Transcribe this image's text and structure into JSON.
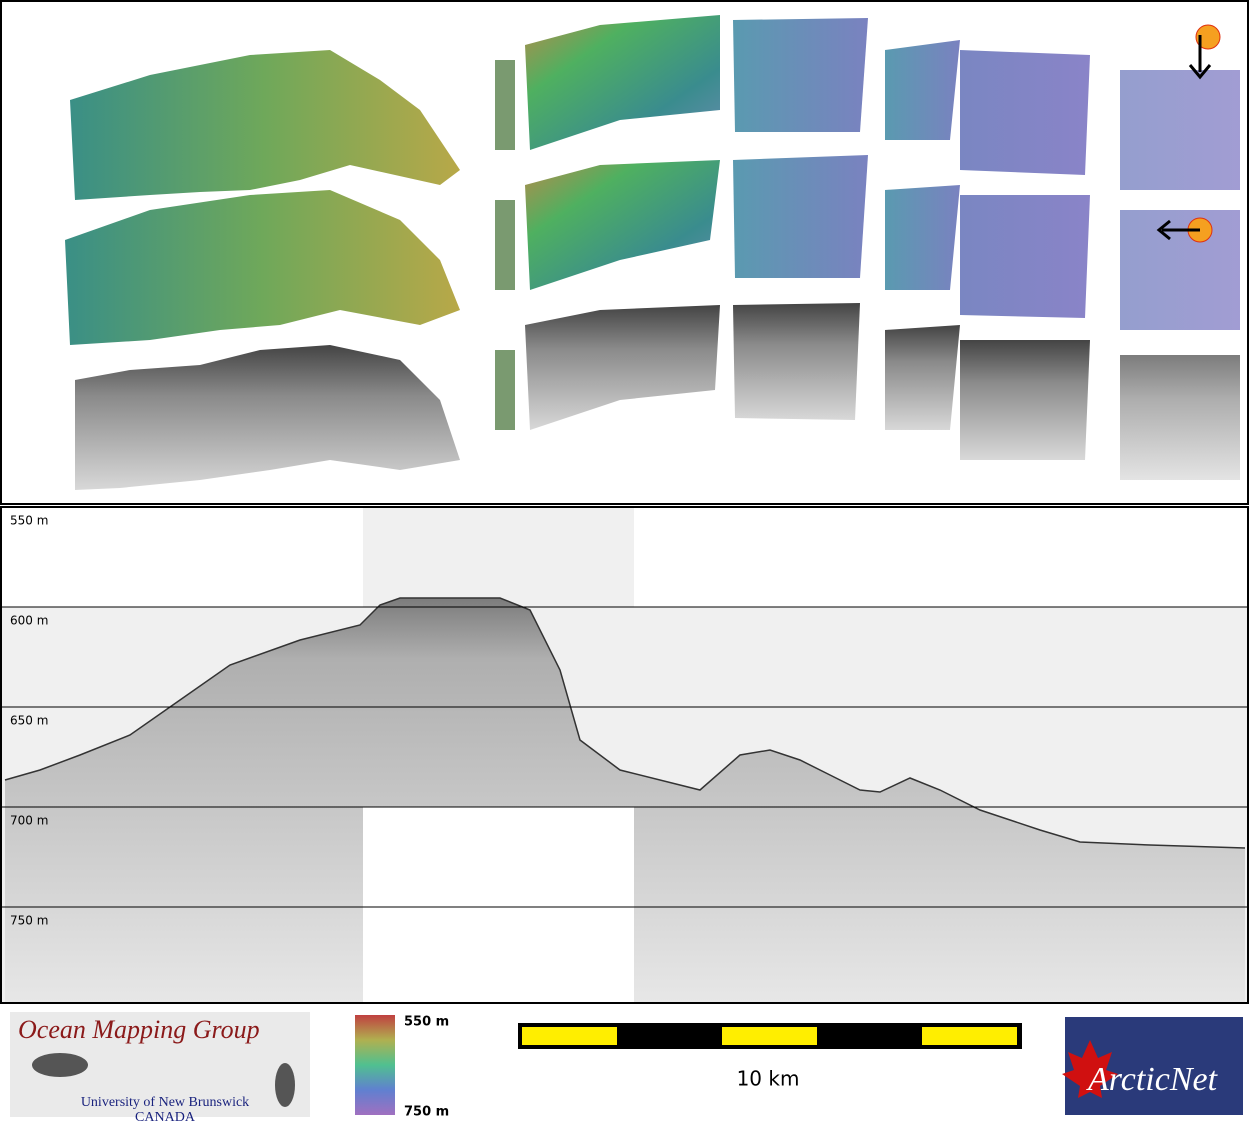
{
  "depth_axis": {
    "labels": [
      "550 m",
      "600 m",
      "650 m",
      "700 m",
      "750 m"
    ]
  },
  "logo": {
    "title": "Ocean Mapping Group",
    "university": "University of New Brunswick",
    "country": "CANADA"
  },
  "color_scale": {
    "top": "550 m",
    "bottom": "750 m"
  },
  "scale_bar": {
    "label": "10 km"
  },
  "partner_logo": {
    "name": "ArcticNet"
  }
}
